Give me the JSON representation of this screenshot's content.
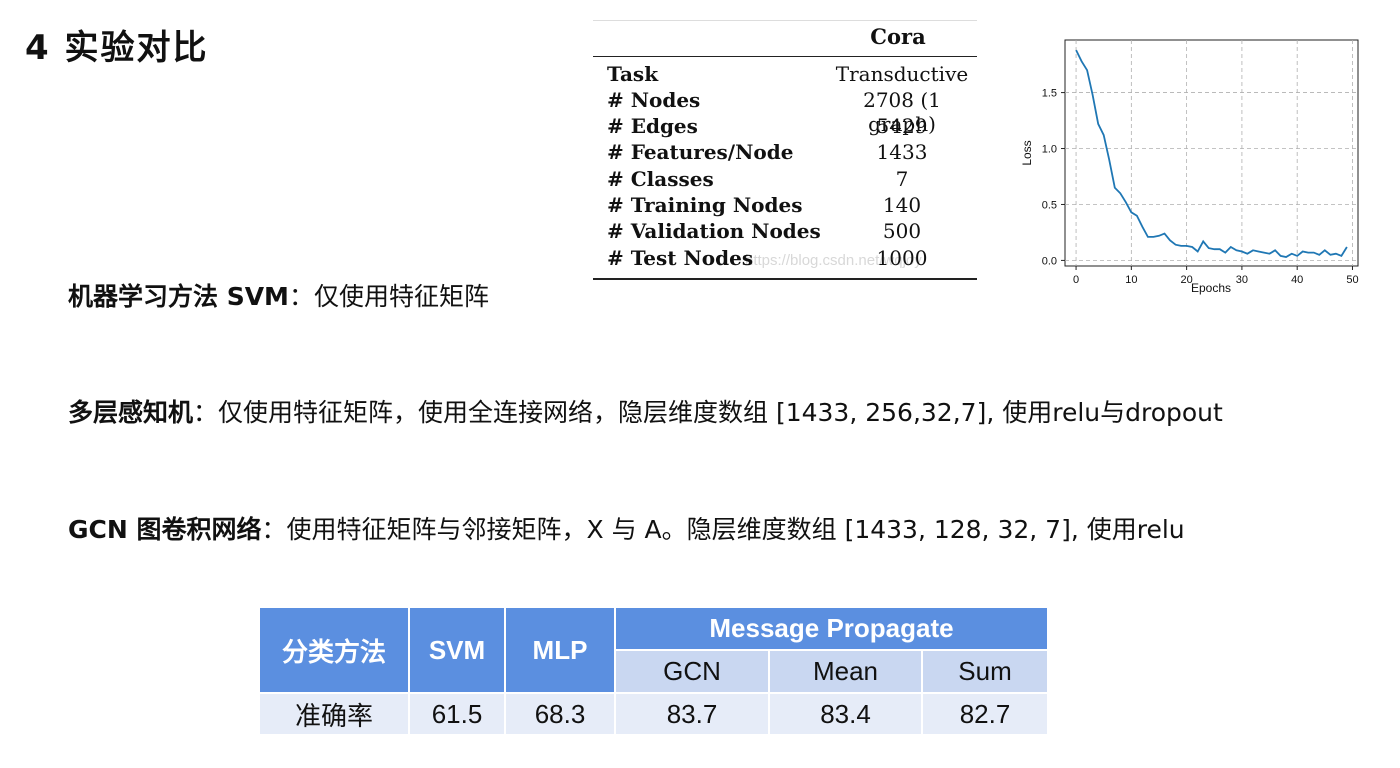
{
  "title": "4 实验对比",
  "lines": {
    "svm_bold": "机器学习方法 SVM",
    "svm_rest": "：仅使用特征矩阵",
    "mlp_bold": "多层感知机",
    "mlp_rest": "：仅使用特征矩阵，使用全连接网络，隐层维度数组 [1433, 256,32,7], 使用relu与dropout",
    "gcn_bold": "GCN 图卷积网络",
    "gcn_rest": "：使用特征矩阵与邻接矩阵，X 与 A。隐层维度数组 [1433, 128, 32, 7], 使用relu"
  },
  "cora_table": {
    "header": "Cora",
    "rows": [
      {
        "key": "Task",
        "value": "Transductive"
      },
      {
        "key": "# Nodes",
        "value": "2708 (1 graph)"
      },
      {
        "key": "# Edges",
        "value": "5429"
      },
      {
        "key": "# Features/Node",
        "value": "1433"
      },
      {
        "key": "# Classes",
        "value": "7"
      },
      {
        "key": "# Training Nodes",
        "value": "140"
      },
      {
        "key": "# Validation Nodes",
        "value": "500"
      },
      {
        "key": "# Test Nodes",
        "value": "1000"
      }
    ],
    "watermark": "https://blog.csdn.net/wqjoy"
  },
  "chart_data": {
    "type": "line",
    "xlabel": "Epochs",
    "ylabel": "Loss",
    "xlim": [
      -2,
      51
    ],
    "ylim": [
      -0.05,
      1.97
    ],
    "xticks": [
      0,
      10,
      20,
      30,
      40,
      50
    ],
    "yticks": [
      0.0,
      0.5,
      1.0,
      1.5
    ],
    "grid": true,
    "color": "#1f77b4",
    "series": [
      {
        "x": [
          0,
          1,
          2,
          3,
          4,
          5,
          6,
          7,
          8,
          9,
          10,
          11,
          12,
          13,
          14,
          15,
          16,
          17,
          18,
          19,
          20,
          21,
          22,
          23,
          24,
          25,
          26,
          27,
          28,
          29,
          30,
          31,
          32,
          33,
          34,
          35,
          36,
          37,
          38,
          39,
          40,
          41,
          42,
          43,
          44,
          45,
          46,
          47,
          48,
          49
        ],
        "values": [
          1.88,
          1.78,
          1.7,
          1.48,
          1.22,
          1.12,
          0.9,
          0.65,
          0.6,
          0.52,
          0.43,
          0.4,
          0.3,
          0.21,
          0.21,
          0.22,
          0.24,
          0.18,
          0.14,
          0.13,
          0.13,
          0.12,
          0.08,
          0.17,
          0.11,
          0.1,
          0.1,
          0.07,
          0.12,
          0.09,
          0.08,
          0.06,
          0.09,
          0.08,
          0.07,
          0.06,
          0.09,
          0.04,
          0.03,
          0.06,
          0.04,
          0.08,
          0.07,
          0.07,
          0.05,
          0.09,
          0.05,
          0.06,
          0.04,
          0.12
        ]
      }
    ]
  },
  "results_table": {
    "method_header": "分类方法",
    "svm_header": "SVM",
    "mlp_header": "MLP",
    "mp_header": "Message Propagate",
    "gcn_header": "GCN",
    "mean_header": "Mean",
    "sum_header": "Sum",
    "row_label": "准确率",
    "svm": "61.5",
    "mlp": "68.3",
    "gcn": "83.7",
    "mean": "83.4",
    "sum": "82.7",
    "header_color": "#5b8fe0",
    "subheader_color": "#c9d7f1",
    "data_color": "#e6ecf8"
  }
}
